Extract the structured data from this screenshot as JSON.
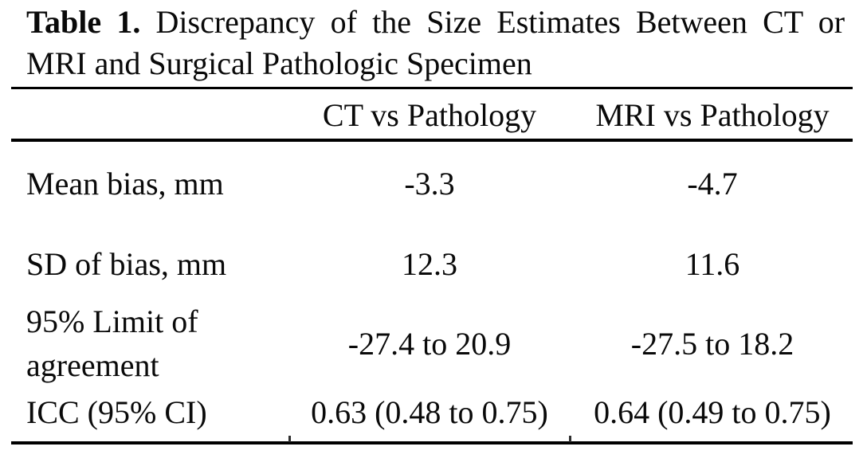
{
  "caption": {
    "number": "Table 1.",
    "line1_rest": "Discrepancy of the Size Estimates Between CT or",
    "line2": "MRI and Surgical Pathologic Specimen"
  },
  "table": {
    "columns": [
      {
        "label": "CT vs Pathology"
      },
      {
        "label": "MRI vs Pathology"
      }
    ],
    "rows": [
      {
        "label": "Mean bias, mm",
        "ct": "-3.3",
        "mri": "-4.7"
      },
      {
        "label": "SD of bias, mm",
        "ct": "12.3",
        "mri": "11.6"
      },
      {
        "label": "95% Limit of agreement",
        "ct": "-27.4 to 20.9",
        "mri": "-27.5 to 18.2"
      },
      {
        "label": "ICC (95% CI)",
        "ct": "0.63 (0.48 to 0.75)",
        "mri": "0.64 (0.49 to 0.75)"
      }
    ]
  }
}
